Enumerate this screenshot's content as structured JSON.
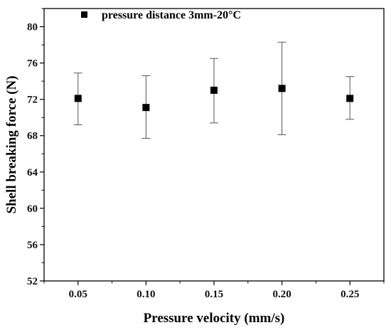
{
  "chart_data": {
    "type": "scatter",
    "xlabel": "Pressure velocity (mm/s)",
    "ylabel": "Shell breaking force (N)",
    "xlim": [
      0.025,
      0.275
    ],
    "ylim": [
      52,
      82
    ],
    "x_ticks": [
      0.05,
      0.1,
      0.15,
      0.2,
      0.25
    ],
    "x_tick_labels": [
      "0.05",
      "0.10",
      "0.15",
      "0.20",
      "0.25"
    ],
    "y_ticks": [
      52,
      56,
      60,
      64,
      68,
      72,
      76,
      80
    ],
    "y_tick_labels": [
      "52",
      "56",
      "60",
      "64",
      "68",
      "72",
      "76",
      "80"
    ],
    "legend_position": "top-left",
    "series": [
      {
        "name": "pressure distance 3mm-20°C",
        "color": "#000000",
        "marker": "square",
        "x": [
          0.05,
          0.1,
          0.15,
          0.2,
          0.25
        ],
        "y": [
          72.1,
          71.1,
          73.0,
          73.2,
          72.1
        ],
        "error_low": [
          69.2,
          67.7,
          69.4,
          68.1,
          69.8
        ],
        "error_high": [
          74.9,
          74.6,
          76.5,
          78.3,
          74.5
        ]
      }
    ],
    "grid": false
  }
}
